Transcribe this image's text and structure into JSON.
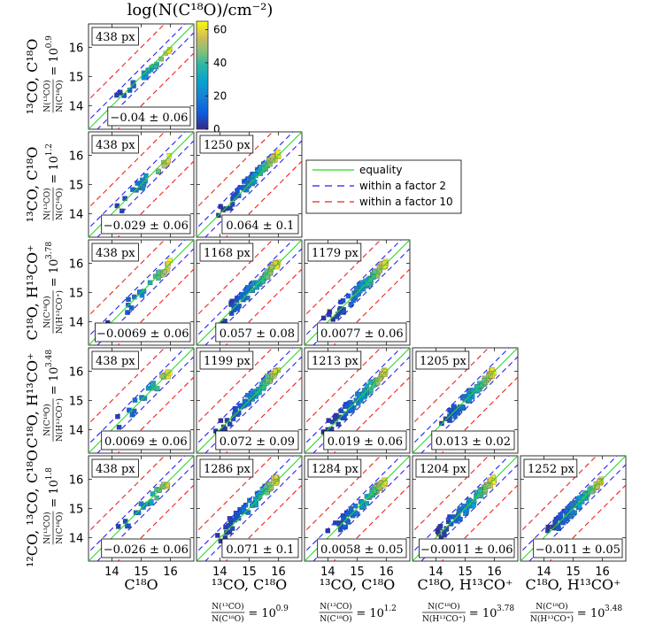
{
  "chart_data": {
    "type": "heatmap",
    "colorbar": {
      "title": "log(N(C¹⁸O)/cm⁻²)",
      "ticks": [
        0,
        20,
        40,
        60
      ],
      "range": [
        0,
        65
      ],
      "colormap": "parula"
    },
    "axes": {
      "range": [
        13.2,
        16.8
      ],
      "ticks": [
        14,
        15,
        16
      ]
    },
    "legend": {
      "placement": "right of upper triangle",
      "entries": [
        {
          "label": "equality",
          "color": "#22dd22",
          "style": "solid"
        },
        {
          "label": "within a factor 2",
          "color": "#2222ee",
          "style": "dashed"
        },
        {
          "label": "within a factor 10",
          "color": "#ee2222",
          "style": "dashed"
        }
      ]
    },
    "row_labels": [
      {
        "line1": "¹³CO, C¹⁸O",
        "ratio_num": "N(¹³CO)",
        "ratio_den": "N(C¹⁸O)",
        "ratio_val": "= 10",
        "ratio_exp": "0.9"
      },
      {
        "line1": "¹³CO, C¹⁸O",
        "ratio_num": "N(¹³CO)",
        "ratio_den": "N(C¹⁸O)",
        "ratio_val": "= 10",
        "ratio_exp": "1.2"
      },
      {
        "line1": "C¹⁸O, H¹³CO⁺",
        "ratio_num": "N(C¹⁸O)",
        "ratio_den": "N(H¹³CO⁺)",
        "ratio_val": "= 10",
        "ratio_exp": "3.78"
      },
      {
        "line1": "C¹⁸O, H¹³CO⁺",
        "ratio_num": "N(C¹⁸O)",
        "ratio_den": "N(H¹³CO⁺)",
        "ratio_val": "= 10",
        "ratio_exp": "3.48"
      },
      {
        "line1": "¹²CO, ¹³CO, C¹⁸O",
        "ratio_num": "N(¹³CO)",
        "ratio_den": "N(C¹⁸O)",
        "ratio_val": "= 10",
        "ratio_exp": "1.8"
      }
    ],
    "col_labels": [
      {
        "line1": "C¹⁸O",
        "ratio_num": "",
        "ratio_den": "",
        "ratio_val": "",
        "ratio_exp": ""
      },
      {
        "line1": "¹³CO, C¹⁸O",
        "ratio_num": "N(¹³CO)",
        "ratio_den": "N(C¹⁸O)",
        "ratio_val": "= 10",
        "ratio_exp": "0.9"
      },
      {
        "line1": "¹³CO, C¹⁸O",
        "ratio_num": "N(¹³CO)",
        "ratio_den": "N(C¹⁸O)",
        "ratio_val": "= 10",
        "ratio_exp": "1.2"
      },
      {
        "line1": "C¹⁸O, H¹³CO⁺",
        "ratio_num": "N(C¹⁸O)",
        "ratio_den": "N(H¹³CO⁺)",
        "ratio_val": "= 10",
        "ratio_exp": "3.78"
      },
      {
        "line1": "C¹⁸O, H¹³CO⁺",
        "ratio_num": "N(C¹⁸O)",
        "ratio_den": "N(H¹³CO⁺)",
        "ratio_val": "= 10",
        "ratio_exp": "3.48"
      }
    ],
    "panels": [
      {
        "row": 0,
        "col": 0,
        "count": "438 px",
        "stat": "−0.04 ± 0.06",
        "offset": -0.04,
        "spread": 0.06
      },
      {
        "row": 1,
        "col": 0,
        "count": "438 px",
        "stat": "−0.029 ± 0.06",
        "offset": -0.029,
        "spread": 0.06
      },
      {
        "row": 1,
        "col": 1,
        "count": "1250 px",
        "stat": "0.064 ± 0.1",
        "offset": 0.064,
        "spread": 0.1
      },
      {
        "row": 2,
        "col": 0,
        "count": "438 px",
        "stat": "−0.0069 ± 0.06",
        "offset": -0.0069,
        "spread": 0.06
      },
      {
        "row": 2,
        "col": 1,
        "count": "1168 px",
        "stat": "0.057 ± 0.08",
        "offset": 0.057,
        "spread": 0.08
      },
      {
        "row": 2,
        "col": 2,
        "count": "1179 px",
        "stat": "0.0077 ± 0.06",
        "offset": 0.0077,
        "spread": 0.06
      },
      {
        "row": 3,
        "col": 0,
        "count": "438 px",
        "stat": "0.0069 ± 0.06",
        "offset": 0.0069,
        "spread": 0.06
      },
      {
        "row": 3,
        "col": 1,
        "count": "1199 px",
        "stat": "0.072 ± 0.09",
        "offset": 0.072,
        "spread": 0.09
      },
      {
        "row": 3,
        "col": 2,
        "count": "1213 px",
        "stat": "0.019 ± 0.06",
        "offset": 0.019,
        "spread": 0.06
      },
      {
        "row": 3,
        "col": 3,
        "count": "1205 px",
        "stat": "0.013 ± 0.02",
        "offset": 0.013,
        "spread": 0.02
      },
      {
        "row": 4,
        "col": 0,
        "count": "438 px",
        "stat": "−0.026 ± 0.06",
        "offset": -0.026,
        "spread": 0.06
      },
      {
        "row": 4,
        "col": 1,
        "count": "1286 px",
        "stat": "0.071 ± 0.1",
        "offset": 0.071,
        "spread": 0.1
      },
      {
        "row": 4,
        "col": 2,
        "count": "1284 px",
        "stat": "0.0058 ± 0.05",
        "offset": 0.0058,
        "spread": 0.05
      },
      {
        "row": 4,
        "col": 3,
        "count": "1204 px",
        "stat": "−0.0011 ± 0.06",
        "offset": -0.0011,
        "spread": 0.06
      },
      {
        "row": 4,
        "col": 4,
        "count": "1252 px",
        "stat": "−0.011 ± 0.05",
        "offset": -0.011,
        "spread": 0.05
      }
    ]
  }
}
